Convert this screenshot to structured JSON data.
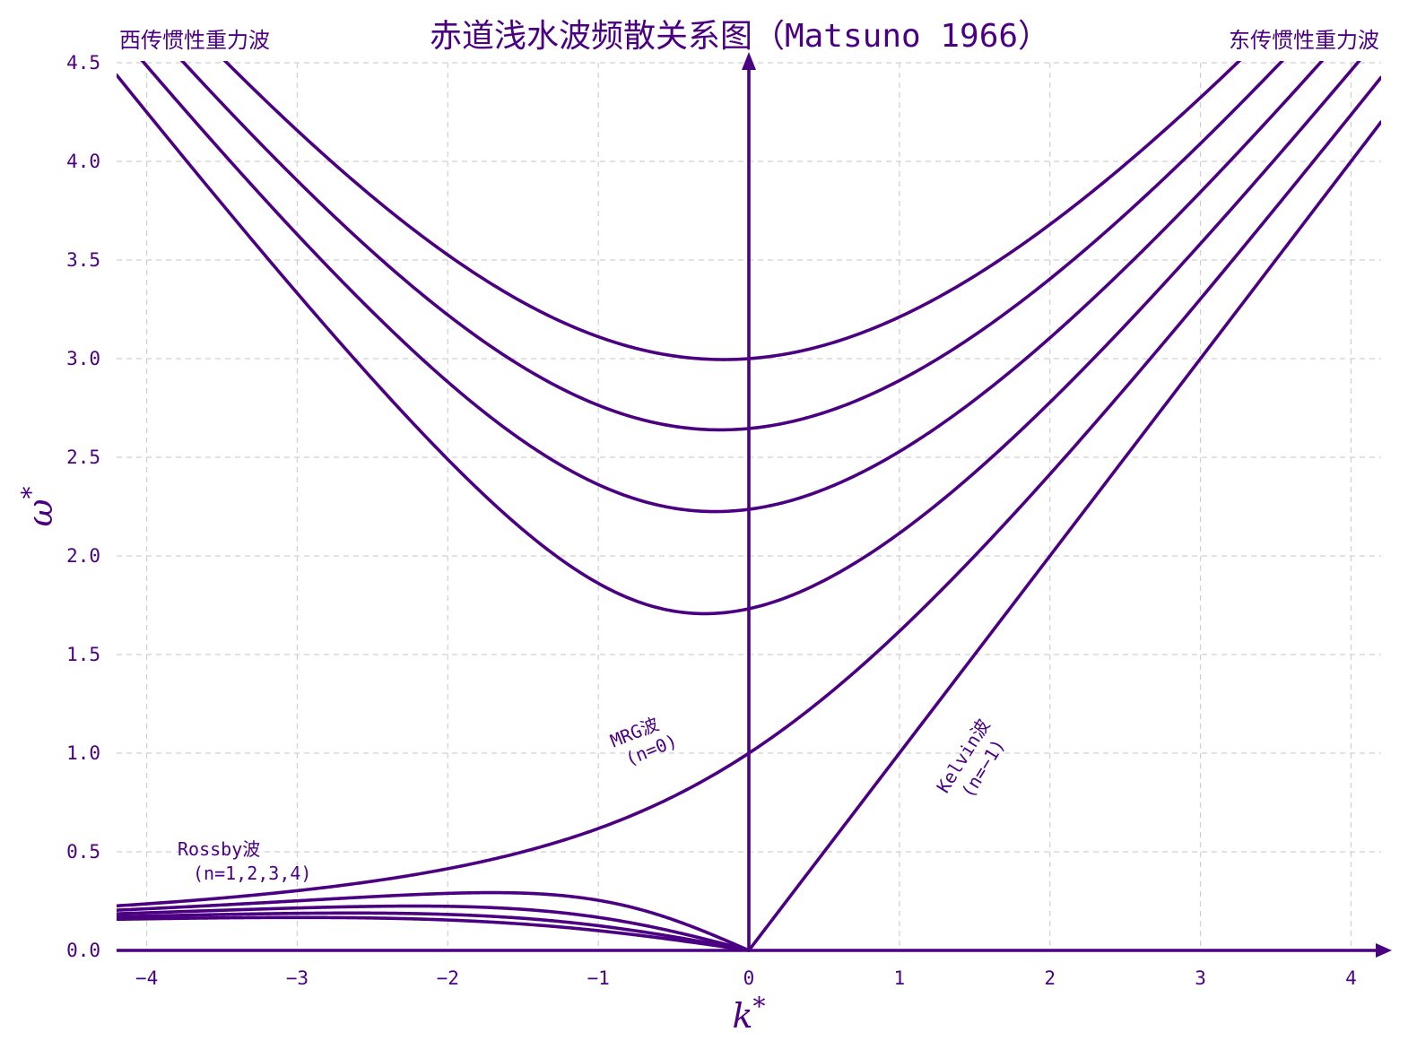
{
  "chart_data": {
    "type": "line",
    "title": "赤道浅水波频散关系图（Matsuno 1966）",
    "xlabel": "k*",
    "ylabel": "ω*",
    "xlim": [
      -4.2,
      4.2
    ],
    "ylim": [
      0,
      4.5
    ],
    "x_ticks": [
      -4,
      -3,
      -2,
      -1,
      0,
      1,
      2,
      3,
      4
    ],
    "x_tick_labels": [
      "−4",
      "−3",
      "−2",
      "−1",
      "0",
      "1",
      "2",
      "3",
      "4"
    ],
    "y_ticks": [
      0,
      0.5,
      1,
      1.5,
      2,
      2.5,
      3,
      3.5,
      4,
      4.5
    ],
    "y_tick_labels": [
      "0.0",
      "0.5",
      "1.0",
      "1.5",
      "2.0",
      "2.5",
      "3.0",
      "3.5",
      "4.0",
      "4.5"
    ],
    "grid": true,
    "color": "#4b0082",
    "corner_labels": {
      "left": "西传惯性重力波",
      "right": "东传惯性重力波"
    },
    "annotations": [
      {
        "line1": "Rossby波",
        "line2": "(n=1,2,3,4)"
      },
      {
        "line1": "MRG波",
        "line2": "(n=0)"
      },
      {
        "line1": "Kelvin波",
        "line2": "(n=−1)"
      }
    ],
    "series": [
      {
        "kind": "kelvin",
        "n": -1,
        "x": [
          0,
          4.2
        ],
        "y": [
          0,
          4.2
        ]
      },
      {
        "kind": "mrg",
        "n": 0,
        "x": [
          -4.2,
          -3,
          -2,
          -1,
          0,
          1,
          2,
          3,
          4.2
        ],
        "y": [
          0.225,
          0.303,
          0.414,
          0.618,
          1.0,
          1.618,
          2.414,
          3.303,
          4.425
        ]
      },
      {
        "kind": "gravity",
        "n": 1,
        "x": [
          -4.2,
          -3,
          -2,
          -1,
          0,
          1,
          2,
          3,
          4.2
        ],
        "y": [
          4.53,
          3.43,
          2.51,
          1.91,
          1.73,
          1.91,
          2.51,
          3.43,
          4.53
        ]
      },
      {
        "kind": "gravity",
        "n": 2,
        "x": [
          -4.2,
          -3,
          -2,
          -1,
          0,
          1,
          2,
          3,
          4.2
        ],
        "y": [
          4.75,
          3.73,
          2.89,
          2.39,
          2.24,
          2.39,
          2.89,
          3.73,
          4.75
        ]
      },
      {
        "kind": "gravity",
        "n": 3,
        "x": [
          -4.2,
          -3,
          -2,
          -1,
          0,
          1,
          2,
          3,
          4.2
        ],
        "y": [
          4.96,
          4.0,
          3.25,
          2.83,
          2.65,
          2.83,
          3.25,
          4.0,
          4.96
        ]
      },
      {
        "kind": "gravity",
        "n": 4,
        "x": [
          -4.2,
          -3,
          -2,
          -1,
          0,
          1,
          2,
          3,
          4.2
        ],
        "y": [
          5.17,
          4.24,
          3.6,
          3.16,
          3.0,
          3.16,
          3.6,
          4.24,
          5.17
        ]
      },
      {
        "kind": "rossby",
        "n": 1,
        "x": [
          -4.2,
          -3,
          -1.73,
          -1,
          0
        ],
        "y": [
          0.22,
          0.27,
          0.29,
          0.25,
          0
        ]
      },
      {
        "kind": "rossby",
        "n": 2,
        "x": [
          -4.2,
          -3,
          -2,
          -1,
          0
        ],
        "y": [
          0.2,
          0.22,
          0.22,
          0.17,
          0
        ]
      },
      {
        "kind": "rossby",
        "n": 3,
        "x": [
          -4.2,
          -3,
          -2,
          -1,
          0
        ],
        "y": [
          0.18,
          0.2,
          0.18,
          0.13,
          0
        ]
      },
      {
        "kind": "rossby",
        "n": 4,
        "x": [
          -4.2,
          -3,
          -2,
          -1,
          0
        ],
        "y": [
          0.17,
          0.17,
          0.16,
          0.1,
          0
        ]
      }
    ]
  }
}
